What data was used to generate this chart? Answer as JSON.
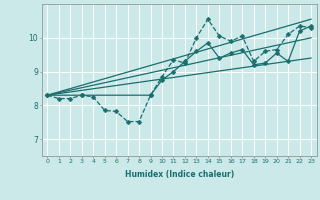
{
  "xlabel": "Humidex (Indice chaleur)",
  "ylabel": "",
  "bg_color": "#cce9e9",
  "grid_color": "#ffffff",
  "line_color": "#1a6e6e",
  "xlim": [
    -0.5,
    23.5
  ],
  "ylim": [
    6.5,
    11.0
  ],
  "xticks": [
    0,
    1,
    2,
    3,
    4,
    5,
    6,
    7,
    8,
    9,
    10,
    11,
    12,
    13,
    14,
    15,
    16,
    17,
    18,
    19,
    20,
    21,
    22,
    23
  ],
  "yticks": [
    7,
    8,
    9,
    10
  ],
  "series": [
    {
      "x": [
        0,
        1,
        2,
        3,
        4,
        5,
        6,
        7,
        8,
        9,
        10,
        11,
        12,
        13,
        14,
        15,
        16,
        17,
        18,
        19,
        20,
        21,
        22,
        23
      ],
      "y": [
        8.3,
        8.2,
        8.2,
        8.3,
        8.25,
        7.85,
        7.82,
        7.52,
        7.52,
        8.3,
        8.85,
        9.35,
        9.25,
        10.0,
        10.55,
        10.05,
        9.9,
        10.05,
        9.3,
        9.6,
        9.65,
        10.1,
        10.35,
        10.3
      ],
      "marker": "D",
      "markersize": 2.5,
      "linewidth": 0.9,
      "linestyle": "--"
    },
    {
      "x": [
        0,
        3,
        9,
        10,
        11,
        12,
        13,
        14,
        15,
        16,
        17,
        18,
        19,
        20,
        21,
        22,
        23
      ],
      "y": [
        8.3,
        8.3,
        8.3,
        8.75,
        9.0,
        9.3,
        9.6,
        9.85,
        9.4,
        9.55,
        9.65,
        9.2,
        9.25,
        9.55,
        9.3,
        10.2,
        10.35
      ],
      "marker": "D",
      "markersize": 2.5,
      "linewidth": 0.9,
      "linestyle": "-"
    },
    {
      "x": [
        0,
        23
      ],
      "y": [
        8.3,
        10.55
      ],
      "marker": null,
      "markersize": 0,
      "linewidth": 0.9,
      "linestyle": "-"
    },
    {
      "x": [
        0,
        23
      ],
      "y": [
        8.3,
        10.0
      ],
      "marker": null,
      "markersize": 0,
      "linewidth": 0.9,
      "linestyle": "-"
    },
    {
      "x": [
        0,
        23
      ],
      "y": [
        8.3,
        9.4
      ],
      "marker": null,
      "markersize": 0,
      "linewidth": 0.9,
      "linestyle": "-"
    }
  ]
}
